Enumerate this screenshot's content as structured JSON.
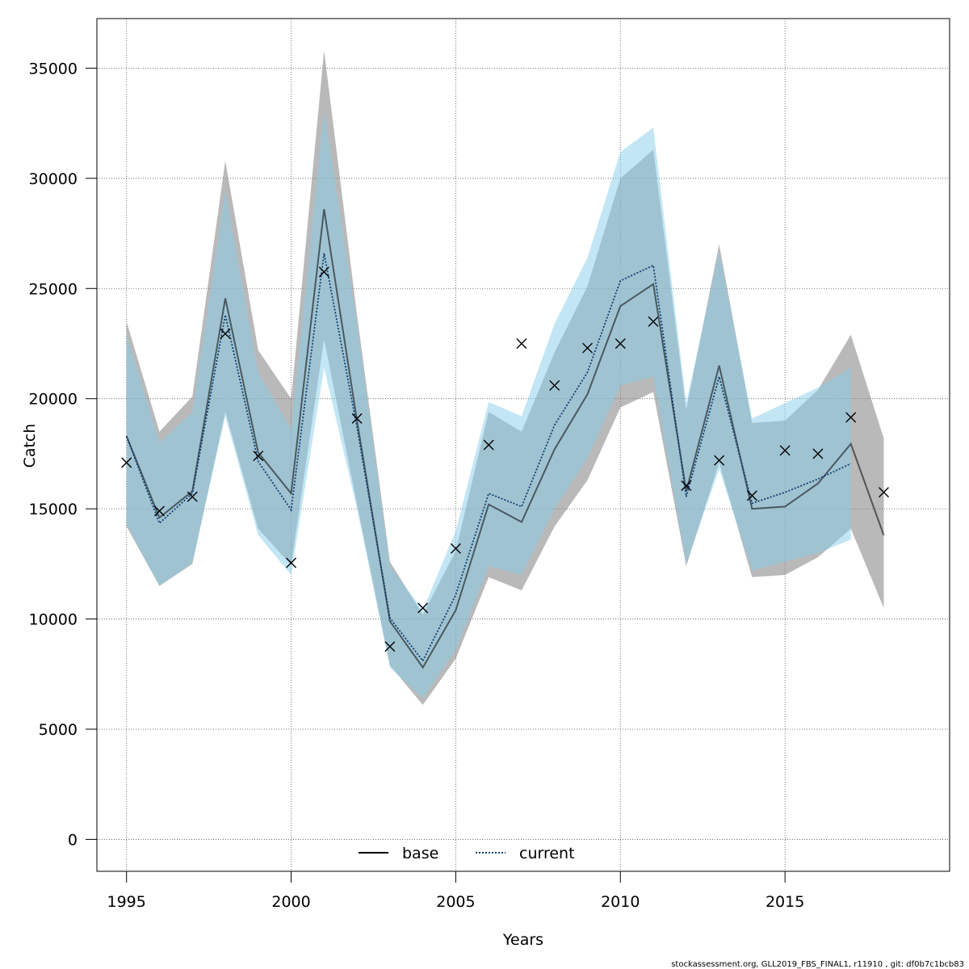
{
  "chart_data": {
    "type": "line",
    "xlabel": "Years",
    "ylabel": "Catch",
    "xlim": [
      1994.1,
      2020.0
    ],
    "ylim": [
      -1450,
      37250
    ],
    "x_ticks": [
      1995,
      2000,
      2005,
      2010,
      2015
    ],
    "y_ticks": [
      0,
      5000,
      10000,
      15000,
      20000,
      25000,
      30000,
      35000
    ],
    "grid": true,
    "legend_position": "bottom-center",
    "series": [
      {
        "name": "base",
        "style": "solid",
        "line_color": "#000000",
        "band_color": "#808080",
        "x": [
          1995,
          1996,
          1997,
          1998,
          1999,
          2000,
          2001,
          2002,
          2003,
          2004,
          2005,
          2006,
          2007,
          2008,
          2009,
          2010,
          2011,
          2012,
          2013,
          2014,
          2015,
          2016,
          2017,
          2018
        ],
        "values": [
          18300,
          14600,
          15800,
          24550,
          17550,
          15700,
          28600,
          19000,
          9900,
          7800,
          10400,
          15200,
          14400,
          17700,
          20200,
          24200,
          25200,
          15800,
          21500,
          15000,
          15100,
          16150,
          17950,
          13800
        ],
        "lower": [
          14200,
          11500,
          12500,
          19400,
          14100,
          12450,
          22700,
          15200,
          7900,
          6100,
          8200,
          11900,
          11300,
          14200,
          16300,
          19600,
          20300,
          12400,
          17100,
          11900,
          12000,
          12800,
          14100,
          10500
        ],
        "upper": [
          23500,
          18500,
          20100,
          30800,
          22200,
          20000,
          35800,
          23800,
          12600,
          10200,
          13100,
          19400,
          18500,
          22100,
          25100,
          30000,
          31300,
          19500,
          27000,
          18900,
          19000,
          20400,
          22900,
          18200
        ]
      },
      {
        "name": "current",
        "style": "dotted",
        "line_color": "#0f3d6e",
        "band_color": "#87ceeb",
        "x": [
          1995,
          1996,
          1997,
          1998,
          1999,
          2000,
          2001,
          2002,
          2003,
          2004,
          2005,
          2006,
          2007,
          2008,
          2009,
          2010,
          2011,
          2012,
          2013,
          2014,
          2015,
          2016,
          2017
        ],
        "values": [
          18300,
          14350,
          15700,
          23800,
          17150,
          14950,
          26600,
          18700,
          10050,
          8100,
          11100,
          15700,
          15100,
          18800,
          21200,
          25350,
          26050,
          15550,
          21000,
          15250,
          15750,
          16350,
          17050
        ],
        "lower": [
          14300,
          11500,
          12550,
          19200,
          13800,
          12000,
          21400,
          15000,
          7800,
          6400,
          8600,
          12400,
          12000,
          15000,
          17300,
          20600,
          21000,
          12500,
          16800,
          12200,
          12600,
          13000,
          13600
        ],
        "upper": [
          22900,
          18000,
          19400,
          29400,
          21200,
          18600,
          33100,
          23400,
          12400,
          10400,
          14000,
          19850,
          19200,
          23400,
          26400,
          31200,
          32300,
          19800,
          26700,
          19100,
          19800,
          20500,
          21400
        ]
      }
    ],
    "observed": {
      "marker": "x",
      "x": [
        1995,
        1996,
        1997,
        1998,
        1999,
        2000,
        2001,
        2002,
        2003,
        2004,
        2005,
        2006,
        2007,
        2008,
        2009,
        2010,
        2011,
        2012,
        2013,
        2014,
        2015,
        2016,
        2017,
        2018
      ],
      "values": [
        17100,
        14900,
        15550,
        22950,
        17400,
        12550,
        25750,
        19100,
        8750,
        10500,
        13200,
        17900,
        22500,
        20600,
        22300,
        22500,
        23500,
        16050,
        17200,
        15600,
        17650,
        17500,
        19150,
        15750
      ]
    },
    "footer": "stockassessment.org, GLL2019_FBS_FINAL1, r11910 , git: df0b7c1bcb83"
  }
}
